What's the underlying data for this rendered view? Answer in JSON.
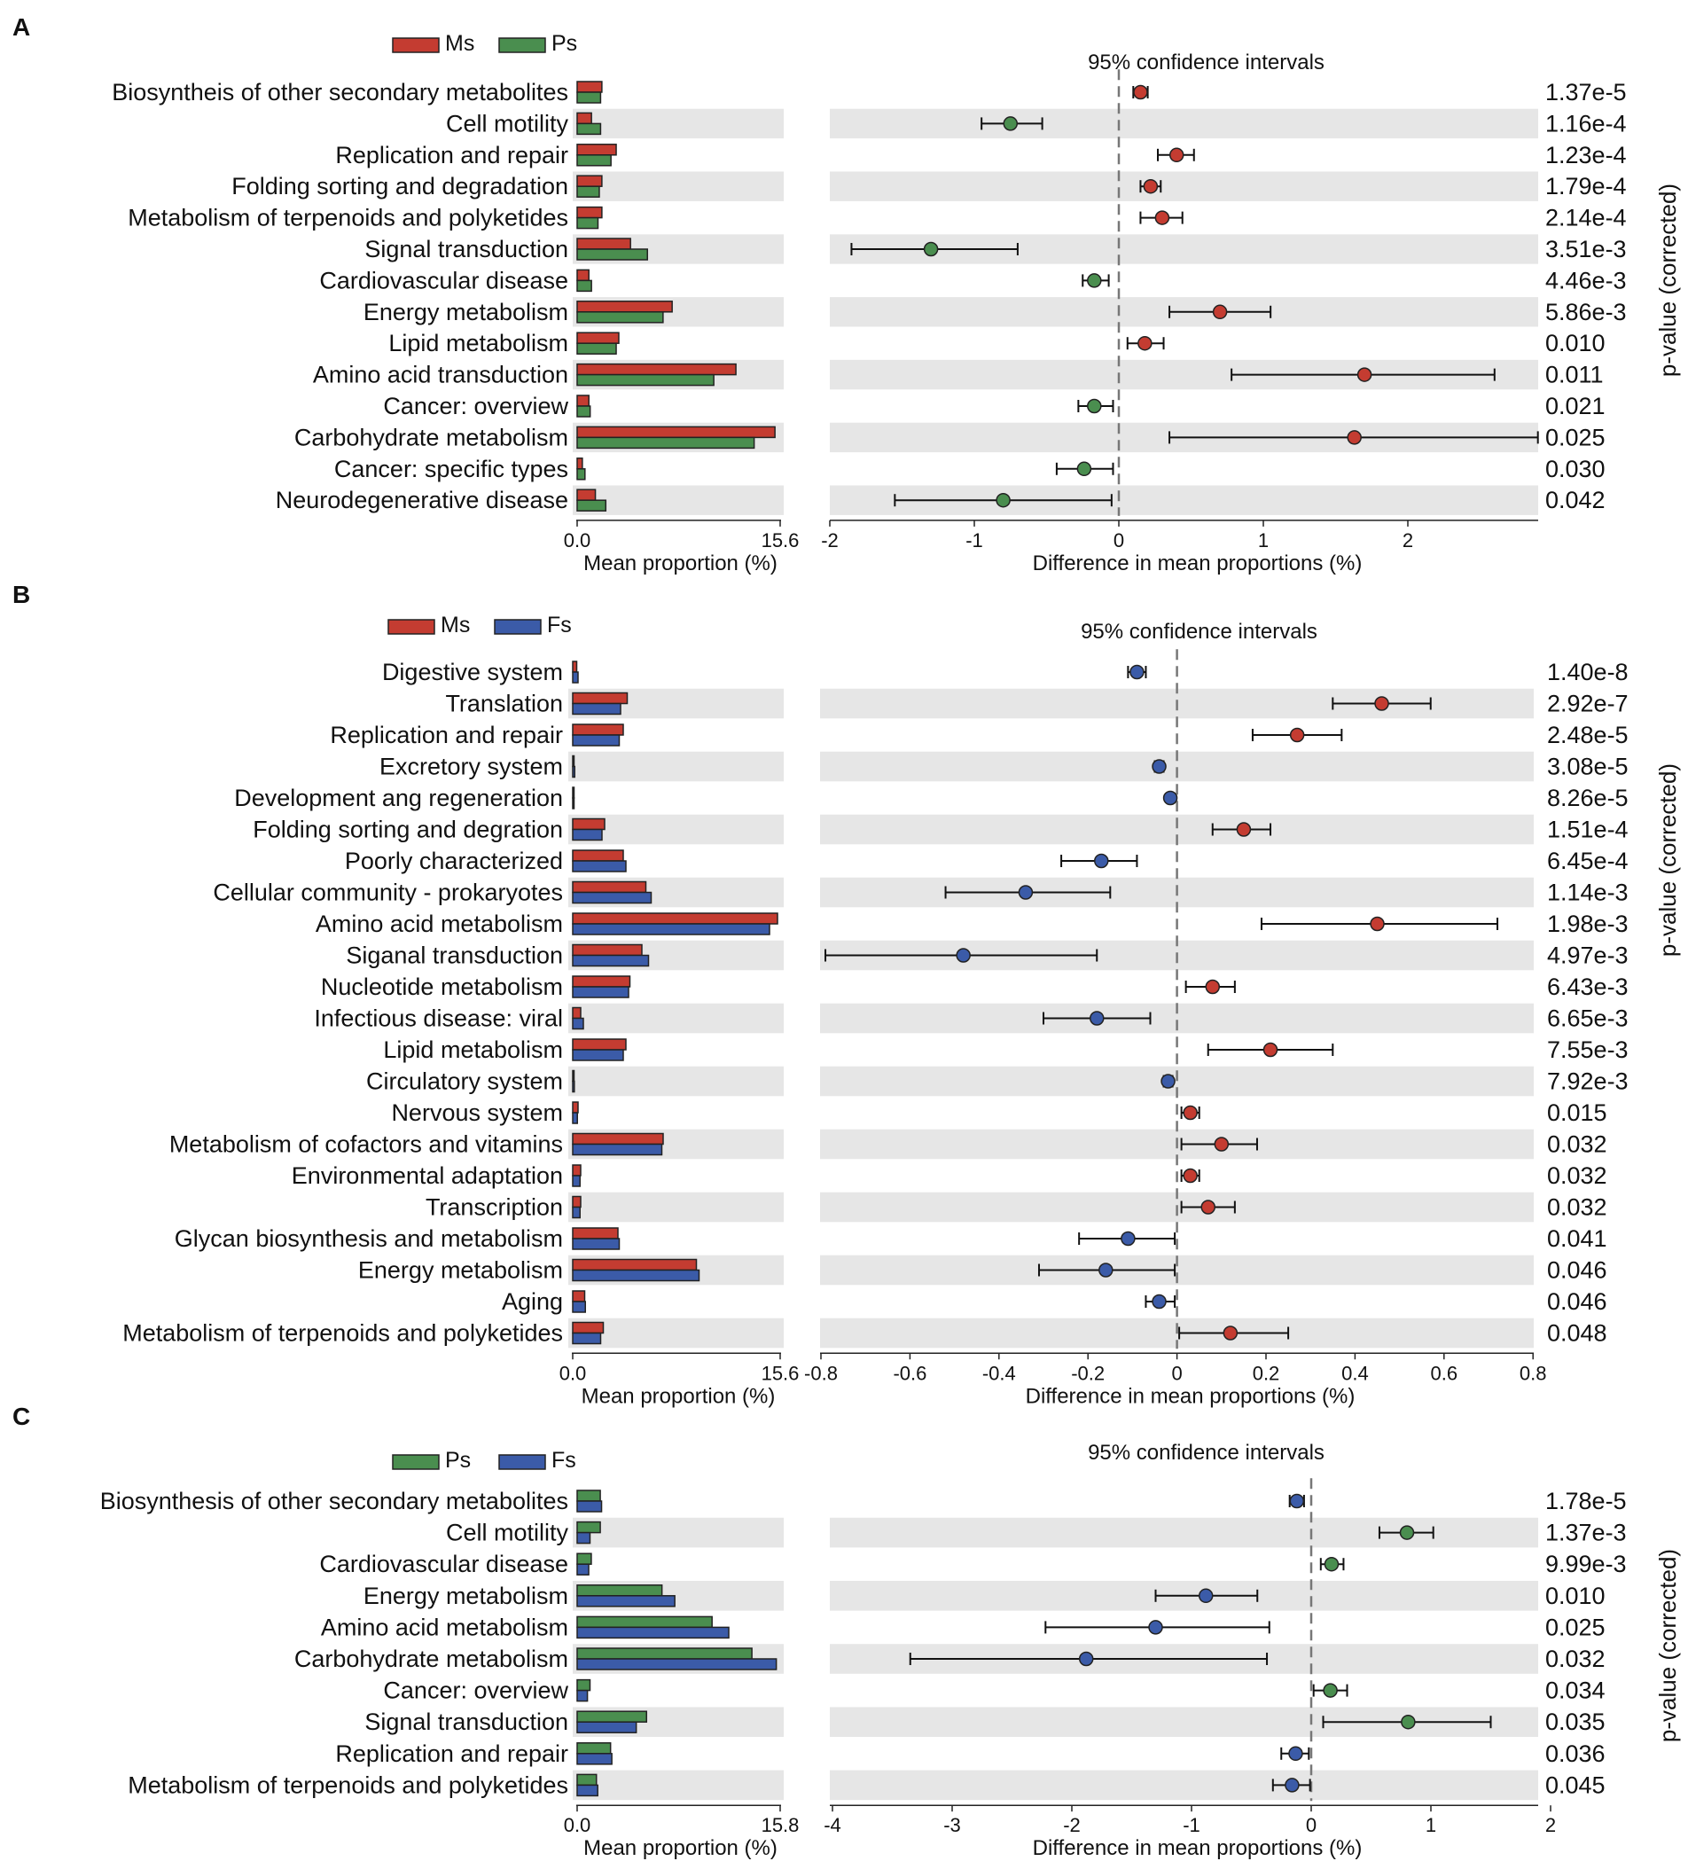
{
  "chart_data": [
    {
      "type": "extended_error_bar",
      "panel": "A",
      "groups": [
        {
          "name": "Ms",
          "color": "#c43c31"
        },
        {
          "name": "Ps",
          "color": "#4a8e4f"
        }
      ],
      "ci_title": "95% confidence intervals",
      "bar_xlabel": "Mean proportion (%)",
      "bar_xlim": [
        0,
        15.6
      ],
      "bar_ticks": [
        "0.0",
        "15.6"
      ],
      "diff_xlabel": "Difference in mean proportions (%)",
      "diff_xlim": [
        -2,
        2.9
      ],
      "diff_ticks": [
        {
          "v": -2,
          "label": "-2"
        },
        {
          "v": -1,
          "label": "-1"
        },
        {
          "v": 0,
          "label": "0"
        },
        {
          "v": 1,
          "label": "1"
        },
        {
          "v": 2,
          "label": "2"
        }
      ],
      "pvalue_label": "p-value (corrected)",
      "rows": [
        {
          "label": "Biosyntheis of other secondary metabolites",
          "g1": 1.9,
          "g2": 1.8,
          "diff": 0.15,
          "lo": 0.1,
          "hi": 0.2,
          "p": "1.37e-5"
        },
        {
          "label": "Cell motility",
          "g1": 1.1,
          "g2": 1.8,
          "diff": -0.75,
          "lo": -0.95,
          "hi": -0.53,
          "p": "1.16e-4"
        },
        {
          "label": "Replication and repair",
          "g1": 3.0,
          "g2": 2.6,
          "diff": 0.4,
          "lo": 0.27,
          "hi": 0.52,
          "p": "1.23e-4"
        },
        {
          "label": "Folding sorting and degradation",
          "g1": 1.9,
          "g2": 1.7,
          "diff": 0.22,
          "lo": 0.15,
          "hi": 0.29,
          "p": "1.79e-4"
        },
        {
          "label": "Metabolism of terpenoids and polyketides",
          "g1": 1.9,
          "g2": 1.6,
          "diff": 0.3,
          "lo": 0.15,
          "hi": 0.44,
          "p": "2.14e-4"
        },
        {
          "label": "Signal transduction",
          "g1": 4.1,
          "g2": 5.4,
          "diff": -1.3,
          "lo": -1.85,
          "hi": -0.7,
          "p": "3.51e-3"
        },
        {
          "label": "Cardiovascular disease",
          "g1": 0.9,
          "g2": 1.1,
          "diff": -0.17,
          "lo": -0.25,
          "hi": -0.07,
          "p": "4.46e-3"
        },
        {
          "label": "Energy metabolism",
          "g1": 7.3,
          "g2": 6.6,
          "diff": 0.7,
          "lo": 0.35,
          "hi": 1.05,
          "p": "5.86e-3"
        },
        {
          "label": "Lipid metabolism",
          "g1": 3.2,
          "g2": 3.0,
          "diff": 0.18,
          "lo": 0.06,
          "hi": 0.31,
          "p": "0.010"
        },
        {
          "label": "Amino acid transduction",
          "g1": 12.2,
          "g2": 10.5,
          "diff": 1.7,
          "lo": 0.78,
          "hi": 2.6,
          "p": "0.011"
        },
        {
          "label": "Cancer: overview",
          "g1": 0.9,
          "g2": 1.0,
          "diff": -0.17,
          "lo": -0.28,
          "hi": -0.04,
          "p": "0.021"
        },
        {
          "label": "Carbohydrate metabolism",
          "g1": 15.2,
          "g2": 13.6,
          "diff": 1.63,
          "lo": 0.35,
          "hi": 2.9,
          "p": "0.025"
        },
        {
          "label": "Cancer: specific types",
          "g1": 0.4,
          "g2": 0.6,
          "diff": -0.24,
          "lo": -0.43,
          "hi": -0.04,
          "p": "0.030"
        },
        {
          "label": "Neurodegenerative disease",
          "g1": 1.4,
          "g2": 2.2,
          "diff": -0.8,
          "lo": -1.55,
          "hi": -0.05,
          "p": "0.042"
        }
      ]
    },
    {
      "type": "extended_error_bar",
      "panel": "B",
      "groups": [
        {
          "name": "Ms",
          "color": "#c43c31"
        },
        {
          "name": "Fs",
          "color": "#3b5ba8"
        }
      ],
      "ci_title": "95% confidence intervals",
      "bar_xlabel": "Mean proportion (%)",
      "bar_xlim": [
        0,
        15.6
      ],
      "bar_ticks": [
        "0.0",
        "15.6"
      ],
      "diff_xlabel": "Difference in mean proportions (%)",
      "diff_xlim": [
        -0.8,
        0.8
      ],
      "diff_ticks": [
        {
          "v": -0.8,
          "label": "-0.8"
        },
        {
          "v": -0.6,
          "label": "-0.6"
        },
        {
          "v": -0.4,
          "label": "-0.4"
        },
        {
          "v": -0.2,
          "label": "-0.2"
        },
        {
          "v": 0,
          "label": "0"
        },
        {
          "v": 0.2,
          "label": "0.2"
        },
        {
          "v": 0.4,
          "label": "0.4"
        },
        {
          "v": 0.6,
          "label": "0.6"
        },
        {
          "v": 0.8,
          "label": "0.8"
        }
      ],
      "pvalue_label": "p-value (corrected)",
      "rows": [
        {
          "label": "Digestive system",
          "g1": 0.3,
          "g2": 0.4,
          "diff": -0.09,
          "lo": -0.11,
          "hi": -0.07,
          "p": "1.40e-8"
        },
        {
          "label": "Translation",
          "g1": 4.1,
          "g2": 3.6,
          "diff": 0.46,
          "lo": 0.35,
          "hi": 0.57,
          "p": "2.92e-7"
        },
        {
          "label": "Replication and repair",
          "g1": 3.8,
          "g2": 3.5,
          "diff": 0.27,
          "lo": 0.17,
          "hi": 0.37,
          "p": "2.48e-5"
        },
        {
          "label": "Excretory system",
          "g1": 0.1,
          "g2": 0.15,
          "diff": -0.04,
          "lo": -0.05,
          "hi": -0.03,
          "p": "3.08e-5"
        },
        {
          "label": "Development ang regeneration",
          "g1": 0.05,
          "g2": 0.07,
          "diff": -0.015,
          "lo": -0.02,
          "hi": -0.01,
          "p": "8.26e-5"
        },
        {
          "label": "Folding sorting and degration",
          "g1": 2.4,
          "g2": 2.2,
          "diff": 0.15,
          "lo": 0.08,
          "hi": 0.21,
          "p": "1.51e-4"
        },
        {
          "label": "Poorly characterized",
          "g1": 3.8,
          "g2": 4.0,
          "diff": -0.17,
          "lo": -0.26,
          "hi": -0.09,
          "p": "6.45e-4"
        },
        {
          "label": "Cellular community - prokaryotes",
          "g1": 5.5,
          "g2": 5.9,
          "diff": -0.34,
          "lo": -0.52,
          "hi": -0.15,
          "p": "1.14e-3"
        },
        {
          "label": "Amino acid metabolism",
          "g1": 15.4,
          "g2": 14.8,
          "diff": 0.45,
          "lo": 0.19,
          "hi": 0.72,
          "p": "1.98e-3"
        },
        {
          "label": "Siganal transduction",
          "g1": 5.2,
          "g2": 5.7,
          "diff": -0.48,
          "lo": -0.79,
          "hi": -0.18,
          "p": "4.97e-3"
        },
        {
          "label": "Nucleotide metabolism",
          "g1": 4.3,
          "g2": 4.2,
          "diff": 0.08,
          "lo": 0.02,
          "hi": 0.13,
          "p": "6.43e-3"
        },
        {
          "label": "Infectious disease: viral",
          "g1": 0.6,
          "g2": 0.8,
          "diff": -0.18,
          "lo": -0.3,
          "hi": -0.06,
          "p": "6.65e-3"
        },
        {
          "label": "Lipid metabolism",
          "g1": 4.0,
          "g2": 3.8,
          "diff": 0.21,
          "lo": 0.07,
          "hi": 0.35,
          "p": "7.55e-3"
        },
        {
          "label": "Circulatory system",
          "g1": 0.1,
          "g2": 0.12,
          "diff": -0.02,
          "lo": -0.03,
          "hi": -0.01,
          "p": "7.92e-3"
        },
        {
          "label": "Nervous system",
          "g1": 0.4,
          "g2": 0.35,
          "diff": 0.03,
          "lo": 0.01,
          "hi": 0.05,
          "p": "0.015"
        },
        {
          "label": "Metabolism of cofactors and vitamins",
          "g1": 6.8,
          "g2": 6.7,
          "diff": 0.1,
          "lo": 0.01,
          "hi": 0.18,
          "p": "0.032"
        },
        {
          "label": "Environmental adaptation",
          "g1": 0.6,
          "g2": 0.55,
          "diff": 0.03,
          "lo": 0.01,
          "hi": 0.05,
          "p": "0.032"
        },
        {
          "label": "Transcription",
          "g1": 0.6,
          "g2": 0.55,
          "diff": 0.07,
          "lo": 0.01,
          "hi": 0.13,
          "p": "0.032"
        },
        {
          "label": "Glycan biosynthesis and metabolism",
          "g1": 3.4,
          "g2": 3.5,
          "diff": -0.11,
          "lo": -0.22,
          "hi": -0.005,
          "p": "0.041"
        },
        {
          "label": "Energy metabolism",
          "g1": 9.3,
          "g2": 9.5,
          "diff": -0.16,
          "lo": -0.31,
          "hi": -0.005,
          "p": "0.046"
        },
        {
          "label": "Aging",
          "g1": 0.9,
          "g2": 0.95,
          "diff": -0.04,
          "lo": -0.07,
          "hi": -0.005,
          "p": "0.046"
        },
        {
          "label": "Metabolism of terpenoids and polyketides",
          "g1": 2.3,
          "g2": 2.1,
          "diff": 0.12,
          "lo": 0.005,
          "hi": 0.25,
          "p": "0.048"
        }
      ]
    },
    {
      "type": "extended_error_bar",
      "panel": "C",
      "groups": [
        {
          "name": "Ps",
          "color": "#4a8e4f"
        },
        {
          "name": "Fs",
          "color": "#3b5ba8"
        }
      ],
      "ci_title": "95% confidence intervals",
      "bar_xlabel": "Mean proportion (%)",
      "bar_xlim": [
        0,
        15.8
      ],
      "bar_ticks": [
        "0.0",
        "15.8"
      ],
      "diff_xlabel": "Difference in mean proportions (%)",
      "diff_xlim": [
        -4,
        2
      ],
      "diff_ticks": [
        {
          "v": -4,
          "label": "-4"
        },
        {
          "v": -3,
          "label": "-3"
        },
        {
          "v": -2,
          "label": "-2"
        },
        {
          "v": -1,
          "label": "-1"
        },
        {
          "v": 0,
          "label": "0"
        },
        {
          "v": 1,
          "label": "1"
        },
        {
          "v": 2,
          "label": "2"
        }
      ],
      "pvalue_label": "p-value (corrected)",
      "rows": [
        {
          "label": "Biosynthesis of other secondary metabolites",
          "g1": 1.8,
          "g2": 1.9,
          "diff": -0.12,
          "lo": -0.18,
          "hi": -0.06,
          "p": "1.78e-5"
        },
        {
          "label": "Cell motility",
          "g1": 1.8,
          "g2": 1.0,
          "diff": 0.8,
          "lo": 0.57,
          "hi": 1.02,
          "p": "1.37e-3"
        },
        {
          "label": "Cardiovascular disease",
          "g1": 1.1,
          "g2": 0.9,
          "diff": 0.17,
          "lo": 0.08,
          "hi": 0.27,
          "p": "9.99e-3"
        },
        {
          "label": "Energy metabolism",
          "g1": 6.6,
          "g2": 7.6,
          "diff": -0.88,
          "lo": -1.3,
          "hi": -0.45,
          "p": "0.010"
        },
        {
          "label": "Amino acid metabolism",
          "g1": 10.5,
          "g2": 11.8,
          "diff": -1.3,
          "lo": -2.22,
          "hi": -0.35,
          "p": "0.025"
        },
        {
          "label": "Carbohydrate metabolism",
          "g1": 13.6,
          "g2": 15.5,
          "diff": -1.88,
          "lo": -3.35,
          "hi": -0.37,
          "p": "0.032"
        },
        {
          "label": "Cancer: overview",
          "g1": 1.0,
          "g2": 0.8,
          "diff": 0.16,
          "lo": 0.02,
          "hi": 0.3,
          "p": "0.034"
        },
        {
          "label": "Signal transduction",
          "g1": 5.4,
          "g2": 4.6,
          "diff": 0.81,
          "lo": 0.1,
          "hi": 1.5,
          "p": "0.035"
        },
        {
          "label": "Replication and repair",
          "g1": 2.6,
          "g2": 2.7,
          "diff": -0.13,
          "lo": -0.25,
          "hi": -0.02,
          "p": "0.036"
        },
        {
          "label": "Metabolism of terpenoids and polyketides",
          "g1": 1.5,
          "g2": 1.6,
          "diff": -0.16,
          "lo": -0.32,
          "hi": -0.01,
          "p": "0.045"
        }
      ]
    }
  ]
}
